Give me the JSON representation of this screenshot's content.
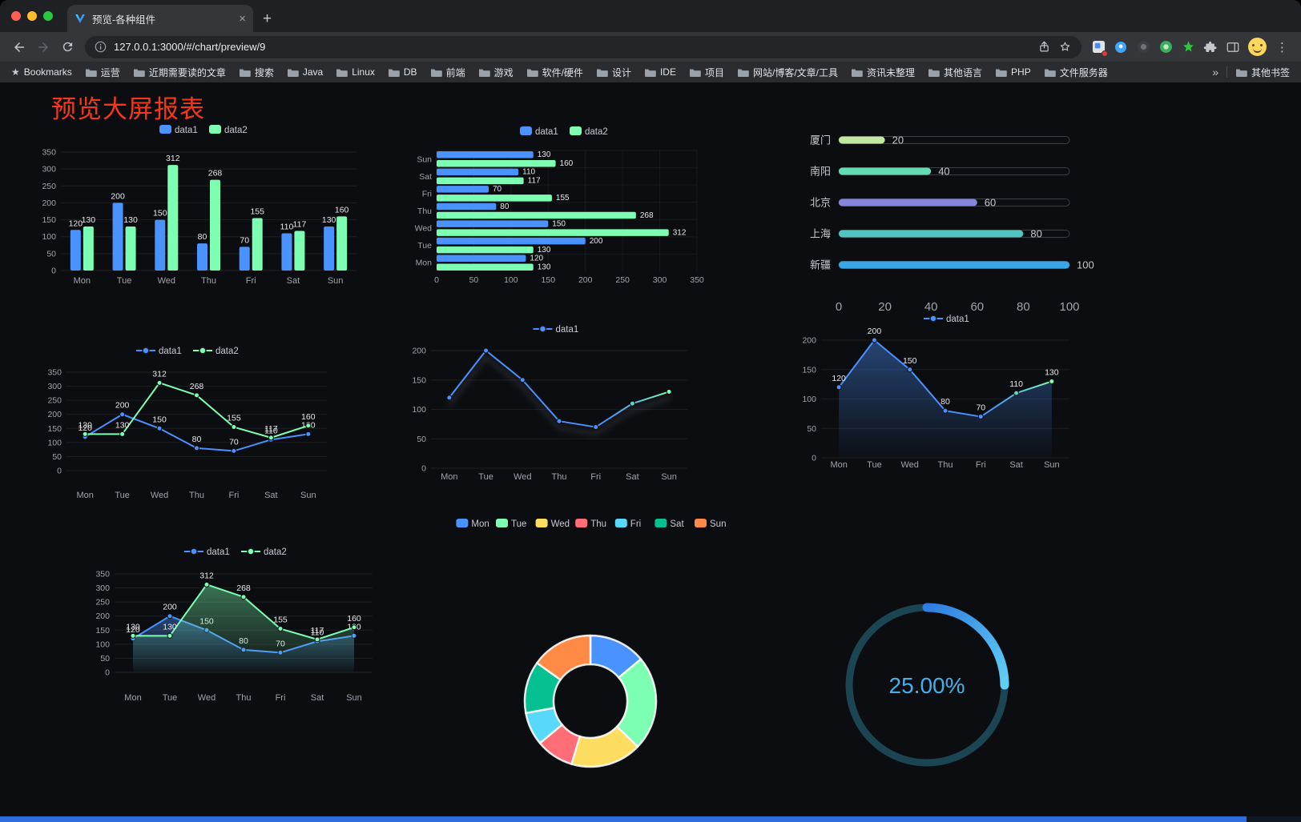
{
  "browser": {
    "tab": {
      "title": "预览-各种组件",
      "close_glyph": "×"
    },
    "new_tab_glyph": "+",
    "toolbar": {
      "url": "127.0.0.1:3000/#/chart/preview/9"
    },
    "bookmarks_bar": {
      "star_glyph": "★",
      "label": "Bookmarks",
      "items": [
        "运营",
        "近期需要读的文章",
        "搜索",
        "Java",
        "Linux",
        "DB",
        "前端",
        "游戏",
        "软件/硬件",
        "设计",
        "IDE",
        "项目",
        "网站/博客/文章/工具",
        "资讯未整理",
        "其他语言",
        "PHP",
        "文件服务器"
      ],
      "overflow_glyph": "»",
      "other_label": "其他书签"
    }
  },
  "page": {
    "title": "预览大屏报表",
    "title_color": "#f5381c"
  },
  "palette": {
    "blue": "#4992ff",
    "green": "#7cffb2",
    "yellow": "#fddd60",
    "red": "#ff6e76",
    "lightblue": "#58d9f9",
    "teal": "#05c091",
    "orange": "#ff8a45",
    "axis_text": "#9fa3ad",
    "legend_text": "#c7c9d4",
    "label_text": "#e8e8ea"
  },
  "chart_data": [
    {
      "id": "grouped-bar",
      "type": "bar",
      "categories": [
        "Mon",
        "Tue",
        "Wed",
        "Thu",
        "Fri",
        "Sat",
        "Sun"
      ],
      "series": [
        {
          "name": "data1",
          "color": "#4992ff",
          "values": [
            120,
            200,
            150,
            80,
            70,
            110,
            130
          ]
        },
        {
          "name": "data2",
          "color": "#7cffb2",
          "values": [
            130,
            130,
            312,
            268,
            155,
            117,
            160
          ]
        }
      ],
      "ylim": [
        0,
        350
      ],
      "yticks": [
        0,
        50,
        100,
        150,
        200,
        250,
        300,
        350
      ],
      "legend": [
        "data1",
        "data2"
      ],
      "legend_position": "top",
      "value_labels": true,
      "grid": true
    },
    {
      "id": "horizontal-bar",
      "type": "bar",
      "orientation": "horizontal",
      "categories": [
        "Mon",
        "Tue",
        "Wed",
        "Thu",
        "Fri",
        "Sat",
        "Sun"
      ],
      "series": [
        {
          "name": "data1",
          "color": "#4992ff",
          "values": [
            120,
            200,
            150,
            80,
            70,
            110,
            130
          ]
        },
        {
          "name": "data2",
          "color": "#7cffb2",
          "values": [
            130,
            130,
            312,
            268,
            155,
            117,
            160
          ]
        }
      ],
      "xlim": [
        0,
        350
      ],
      "xticks": [
        0,
        50,
        100,
        150,
        200,
        250,
        300,
        350
      ],
      "legend": [
        "data1",
        "data2"
      ],
      "legend_position": "top",
      "value_labels": true,
      "grid": true
    },
    {
      "id": "city-progress",
      "type": "bar",
      "orientation": "horizontal",
      "categories": [
        "厦门",
        "南阳",
        "北京",
        "上海",
        "新疆"
      ],
      "values": [
        20,
        40,
        60,
        80,
        100
      ],
      "colors": [
        "#c3e89f",
        "#63dcb4",
        "#8784dc",
        "#52c4c0",
        "#38a5e8"
      ],
      "xlim": [
        0,
        100
      ],
      "xticks": [
        0,
        20,
        40,
        60,
        80,
        100
      ],
      "value_labels": true
    },
    {
      "id": "line-two-series",
      "type": "line",
      "categories": [
        "Mon",
        "Tue",
        "Wed",
        "Thu",
        "Fri",
        "Sat",
        "Sun"
      ],
      "series": [
        {
          "name": "data1",
          "color": "#4992ff",
          "values": [
            120,
            200,
            150,
            80,
            70,
            110,
            130
          ]
        },
        {
          "name": "data2",
          "color": "#7cffb2",
          "values": [
            130,
            130,
            312,
            268,
            155,
            117,
            160
          ]
        }
      ],
      "ylim": [
        0,
        350
      ],
      "yticks": [
        0,
        50,
        100,
        150,
        200,
        250,
        300,
        350
      ],
      "legend": [
        "data1",
        "data2"
      ],
      "legend_position": "top",
      "value_labels": true,
      "grid": true
    },
    {
      "id": "gradient-line",
      "type": "line",
      "categories": [
        "Mon",
        "Tue",
        "Wed",
        "Thu",
        "Fri",
        "Sat",
        "Sun"
      ],
      "series": [
        {
          "name": "data1",
          "color": "#4992ff",
          "color_end": "#7cffb2",
          "values": [
            120,
            200,
            150,
            80,
            70,
            110,
            130
          ]
        }
      ],
      "ylim": [
        0,
        200
      ],
      "yticks": [
        0,
        50,
        100,
        150,
        200
      ],
      "legend": [
        "data1"
      ],
      "legend_position": "top",
      "value_labels": false,
      "grid": true
    },
    {
      "id": "area-line",
      "type": "area",
      "categories": [
        "Mon",
        "Tue",
        "Wed",
        "Thu",
        "Fri",
        "Sat",
        "Sun"
      ],
      "series": [
        {
          "name": "data1",
          "color": "#4992ff",
          "color_end": "#7cffb2",
          "values": [
            120,
            200,
            150,
            80,
            70,
            110,
            130
          ]
        }
      ],
      "ylim": [
        0,
        200
      ],
      "yticks": [
        0,
        50,
        100,
        150,
        200
      ],
      "legend": [
        "data1"
      ],
      "legend_position": "top",
      "value_labels": true,
      "grid": true
    },
    {
      "id": "area-two-series",
      "type": "area",
      "categories": [
        "Mon",
        "Tue",
        "Wed",
        "Thu",
        "Fri",
        "Sat",
        "Sun"
      ],
      "series": [
        {
          "name": "data1",
          "color": "#4992ff",
          "values": [
            120,
            200,
            150,
            80,
            70,
            110,
            130
          ]
        },
        {
          "name": "data2",
          "color": "#7cffb2",
          "values": [
            130,
            130,
            312,
            268,
            155,
            117,
            160
          ]
        }
      ],
      "ylim": [
        0,
        350
      ],
      "yticks": [
        0,
        50,
        100,
        150,
        200,
        250,
        300,
        350
      ],
      "legend": [
        "data1",
        "data2"
      ],
      "legend_position": "top",
      "value_labels": true,
      "grid": true
    },
    {
      "id": "week-donut",
      "type": "pie",
      "donut": true,
      "labels": [
        "Mon",
        "Tue",
        "Wed",
        "Thu",
        "Fri",
        "Sat",
        "Sun"
      ],
      "values": [
        120,
        200,
        150,
        80,
        70,
        110,
        130
      ],
      "colors": [
        "#4992ff",
        "#7cffb2",
        "#fddd60",
        "#ff6e76",
        "#58d9f9",
        "#05c091",
        "#ff8a45"
      ],
      "legend_position": "top"
    },
    {
      "id": "percent-gauge",
      "type": "gauge",
      "value": 25,
      "max": 100,
      "label": "25.00%",
      "arc_color_start": "#2f7de0",
      "arc_color_end": "#62d0f5",
      "track_color": "#1b4552",
      "text_color": "#41b2ea"
    }
  ]
}
